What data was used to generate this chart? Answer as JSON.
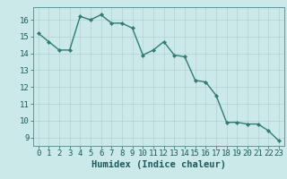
{
  "x": [
    0,
    1,
    2,
    3,
    4,
    5,
    6,
    7,
    8,
    9,
    10,
    11,
    12,
    13,
    14,
    15,
    16,
    17,
    18,
    19,
    20,
    21,
    22,
    23
  ],
  "y": [
    15.2,
    14.7,
    14.2,
    14.2,
    16.2,
    16.0,
    16.3,
    15.8,
    15.8,
    15.5,
    13.9,
    14.2,
    14.7,
    13.9,
    13.8,
    12.4,
    12.3,
    11.5,
    9.9,
    9.9,
    9.8,
    9.8,
    9.4,
    8.8
  ],
  "line_color": "#2e7d6e",
  "marker": "D",
  "marker_size": 2.2,
  "bg_color": "#cce9e9",
  "grid_color": "#b8d4d4",
  "xlabel": "Humidex (Indice chaleur)",
  "xlim": [
    -0.5,
    23.5
  ],
  "ylim": [
    8.5,
    16.75
  ],
  "yticks": [
    9,
    10,
    11,
    12,
    13,
    14,
    15,
    16
  ],
  "xticks": [
    0,
    1,
    2,
    3,
    4,
    5,
    6,
    7,
    8,
    9,
    10,
    11,
    12,
    13,
    14,
    15,
    16,
    17,
    18,
    19,
    20,
    21,
    22,
    23
  ],
  "tick_fontsize": 6.5,
  "xlabel_fontsize": 7.5
}
